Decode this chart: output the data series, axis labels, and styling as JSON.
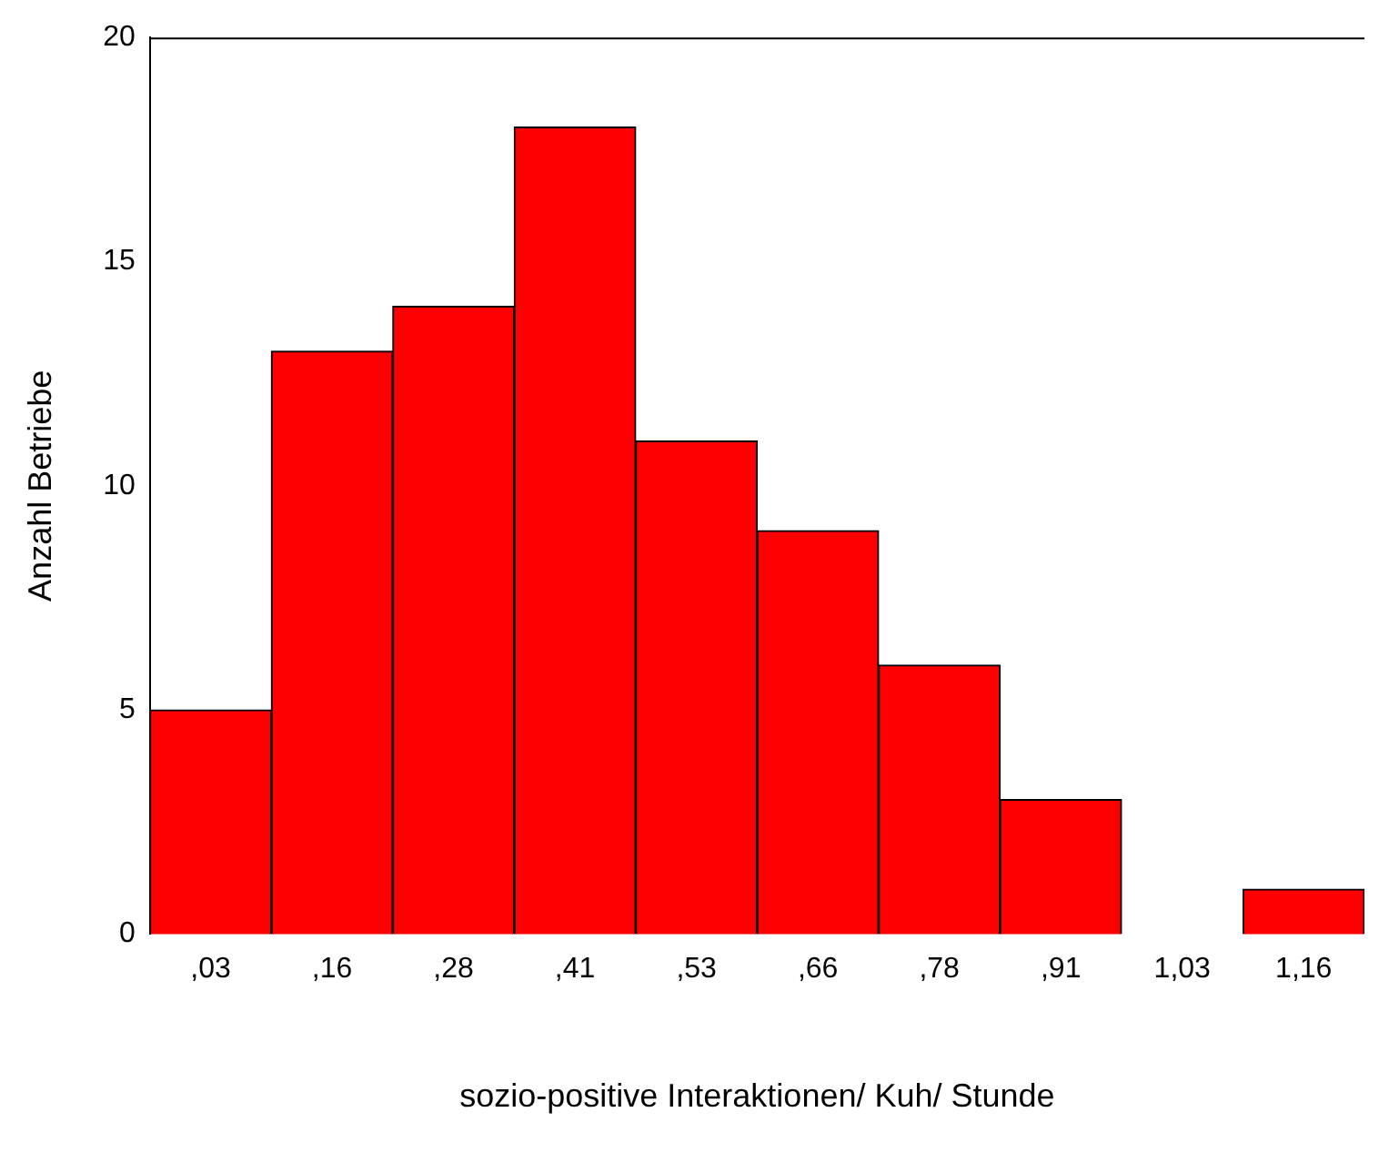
{
  "chart_data": {
    "type": "bar",
    "xlabel": "sozio-positive Interaktionen/ Kuh/ Stunde",
    "ylabel": "Anzahl Betriebe",
    "categories": [
      ",03",
      ",16",
      ",28",
      ",41",
      ",53",
      ",66",
      ",78",
      ",91",
      "1,03",
      "1,16"
    ],
    "values": [
      5,
      13,
      14,
      18,
      11,
      9,
      6,
      3,
      0,
      1
    ],
    "color": "#ff0000",
    "ylim": [
      0,
      20
    ],
    "yticks": [
      0,
      5,
      10,
      15,
      20
    ],
    "grid": false,
    "legend": false
  }
}
